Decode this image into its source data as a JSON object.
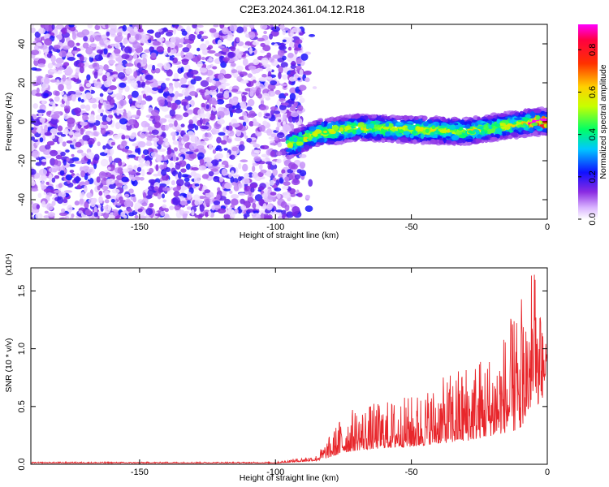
{
  "title": "C2E3.2024.361.04.12.R18",
  "colors": {
    "snr_line": "#e8262b",
    "axis": "#000000"
  },
  "chart_data": [
    {
      "type": "heatmap",
      "xlabel": "Height of straight line (km)",
      "ylabel": "Frequency (Hz)",
      "xlim": [
        -190,
        0
      ],
      "ylim": [
        -50,
        50
      ],
      "xticks": [
        -150,
        -100,
        -50,
        0
      ],
      "yticks": [
        -40,
        -20,
        0,
        20,
        40
      ],
      "colorbar": {
        "label": "Normalized spectral amplitude",
        "range": [
          0,
          0.92
        ],
        "ticks": [
          0.0,
          0.2,
          0.4,
          0.6,
          0.8
        ],
        "colormap": "rainbow (white-violet-blue-cyan-green-yellow-red-magenta)"
      },
      "features": {
        "noise_region_km": [
          -190,
          -90
        ],
        "noise_amplitude_range": [
          0.02,
          0.22
        ],
        "signal_band": {
          "x_km": [
            -95,
            0
          ],
          "center_frequency_hz": [
            [
              -95,
              -12
            ],
            [
              -85,
              -6
            ],
            [
              -70,
              -3
            ],
            [
              -50,
              -4
            ],
            [
              -30,
              -5
            ],
            [
              -15,
              -2
            ],
            [
              -5,
              0
            ],
            [
              0,
              0
            ]
          ],
          "half_width_hz": 5,
          "peak_amplitude_range": [
            0.3,
            0.9
          ]
        }
      }
    },
    {
      "type": "line",
      "xlabel": "Height of straight line (km)",
      "ylabel": "SNR (10 * v/v)",
      "y_scale_label": "(x10⁴)",
      "xlim": [
        -190,
        0
      ],
      "ylim": [
        0,
        1.7
      ],
      "xticks": [
        -150,
        -100,
        -50,
        0
      ],
      "yticks": [
        0.0,
        0.5,
        1.0,
        1.5
      ],
      "series": [
        {
          "envelope": {
            "x": [
              -190,
              -100,
              -85,
              -80,
              -75,
              -70,
              -60,
              -50,
              -40,
              -30,
              -20,
              -10,
              -5,
              -2,
              0
            ],
            "y_baseline": [
              0.01,
              0.01,
              0.03,
              0.06,
              0.1,
              0.12,
              0.14,
              0.15,
              0.18,
              0.2,
              0.25,
              0.3,
              0.55,
              0.5,
              0.9
            ],
            "y_peak": [
              0.02,
              0.02,
              0.08,
              0.25,
              0.45,
              0.5,
              0.55,
              0.6,
              0.72,
              0.9,
              1.0,
              1.4,
              1.68,
              1.2,
              1.1
            ]
          }
        }
      ]
    }
  ]
}
